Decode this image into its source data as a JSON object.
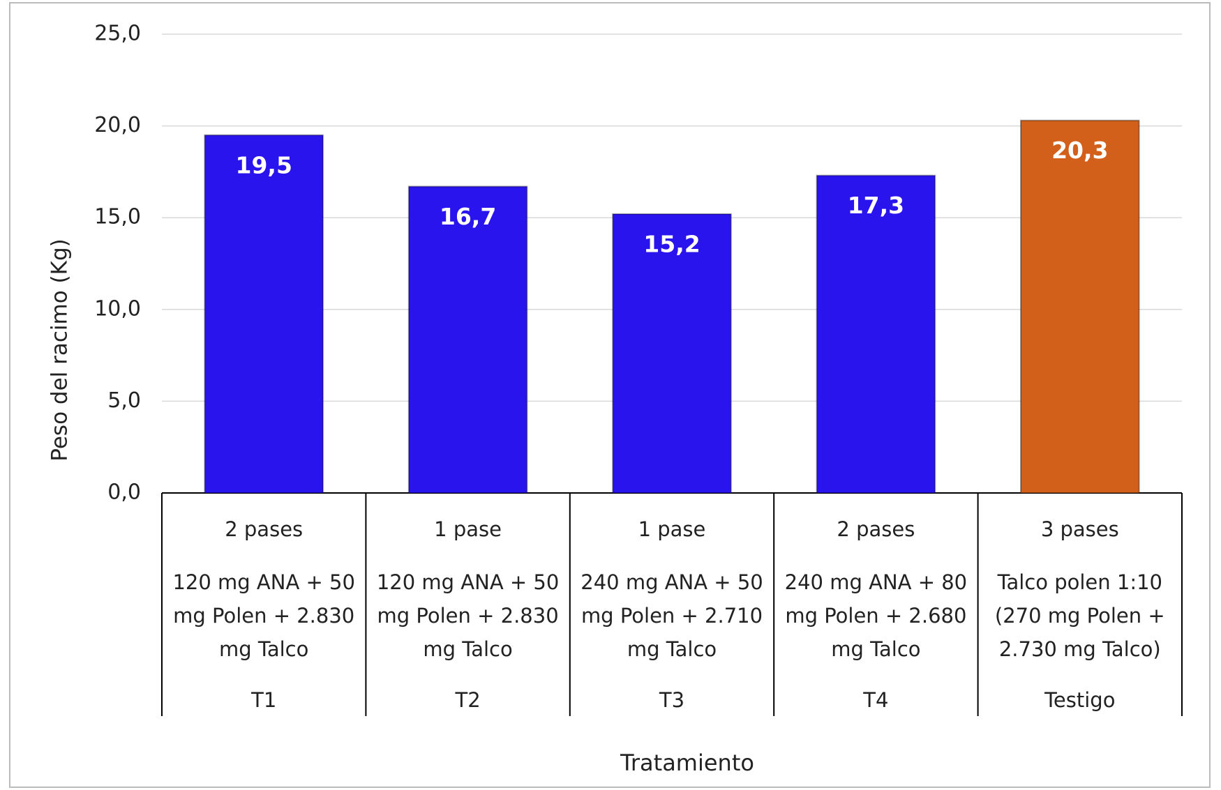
{
  "chart_data": {
    "type": "bar",
    "y_label": "Peso del  racimo (Kg)",
    "x_label": "Tratamiento",
    "categories": [
      "T1",
      "T2",
      "T3",
      "T4",
      "Testigo"
    ],
    "passes": [
      "2 pases",
      "1 pase",
      "1 pase",
      "2 pases",
      "3 pases"
    ],
    "descriptions": [
      "120 mg ANA + 50 mg Polen + 2.830 mg Talco",
      "120 mg ANA + 50 mg Polen + 2.830 mg Talco",
      "240 mg ANA + 50 mg Polen + 2.710 mg Talco",
      "240 mg ANA + 80 mg Polen + 2.680 mg Talco",
      "Talco polen 1:10 (270 mg Polen + 2.730 mg Talco)"
    ],
    "values": [
      19.5,
      16.7,
      15.2,
      17.3,
      20.3
    ],
    "value_labels": [
      "19,5",
      "16,7",
      "15,2",
      "17,3",
      "20,3"
    ],
    "colors": [
      "#2a14ee",
      "#2a14ee",
      "#2a14ee",
      "#2a14ee",
      "#d2601a"
    ],
    "ylim": [
      0,
      25
    ],
    "yticks": [
      {
        "value": 0,
        "label": "0,0"
      },
      {
        "value": 5,
        "label": "5,0"
      },
      {
        "value": 10,
        "label": "10,0"
      },
      {
        "value": 15,
        "label": "15,0"
      },
      {
        "value": 20,
        "label": "20,0"
      },
      {
        "value": 25,
        "label": "25,0"
      }
    ],
    "grid": true
  }
}
